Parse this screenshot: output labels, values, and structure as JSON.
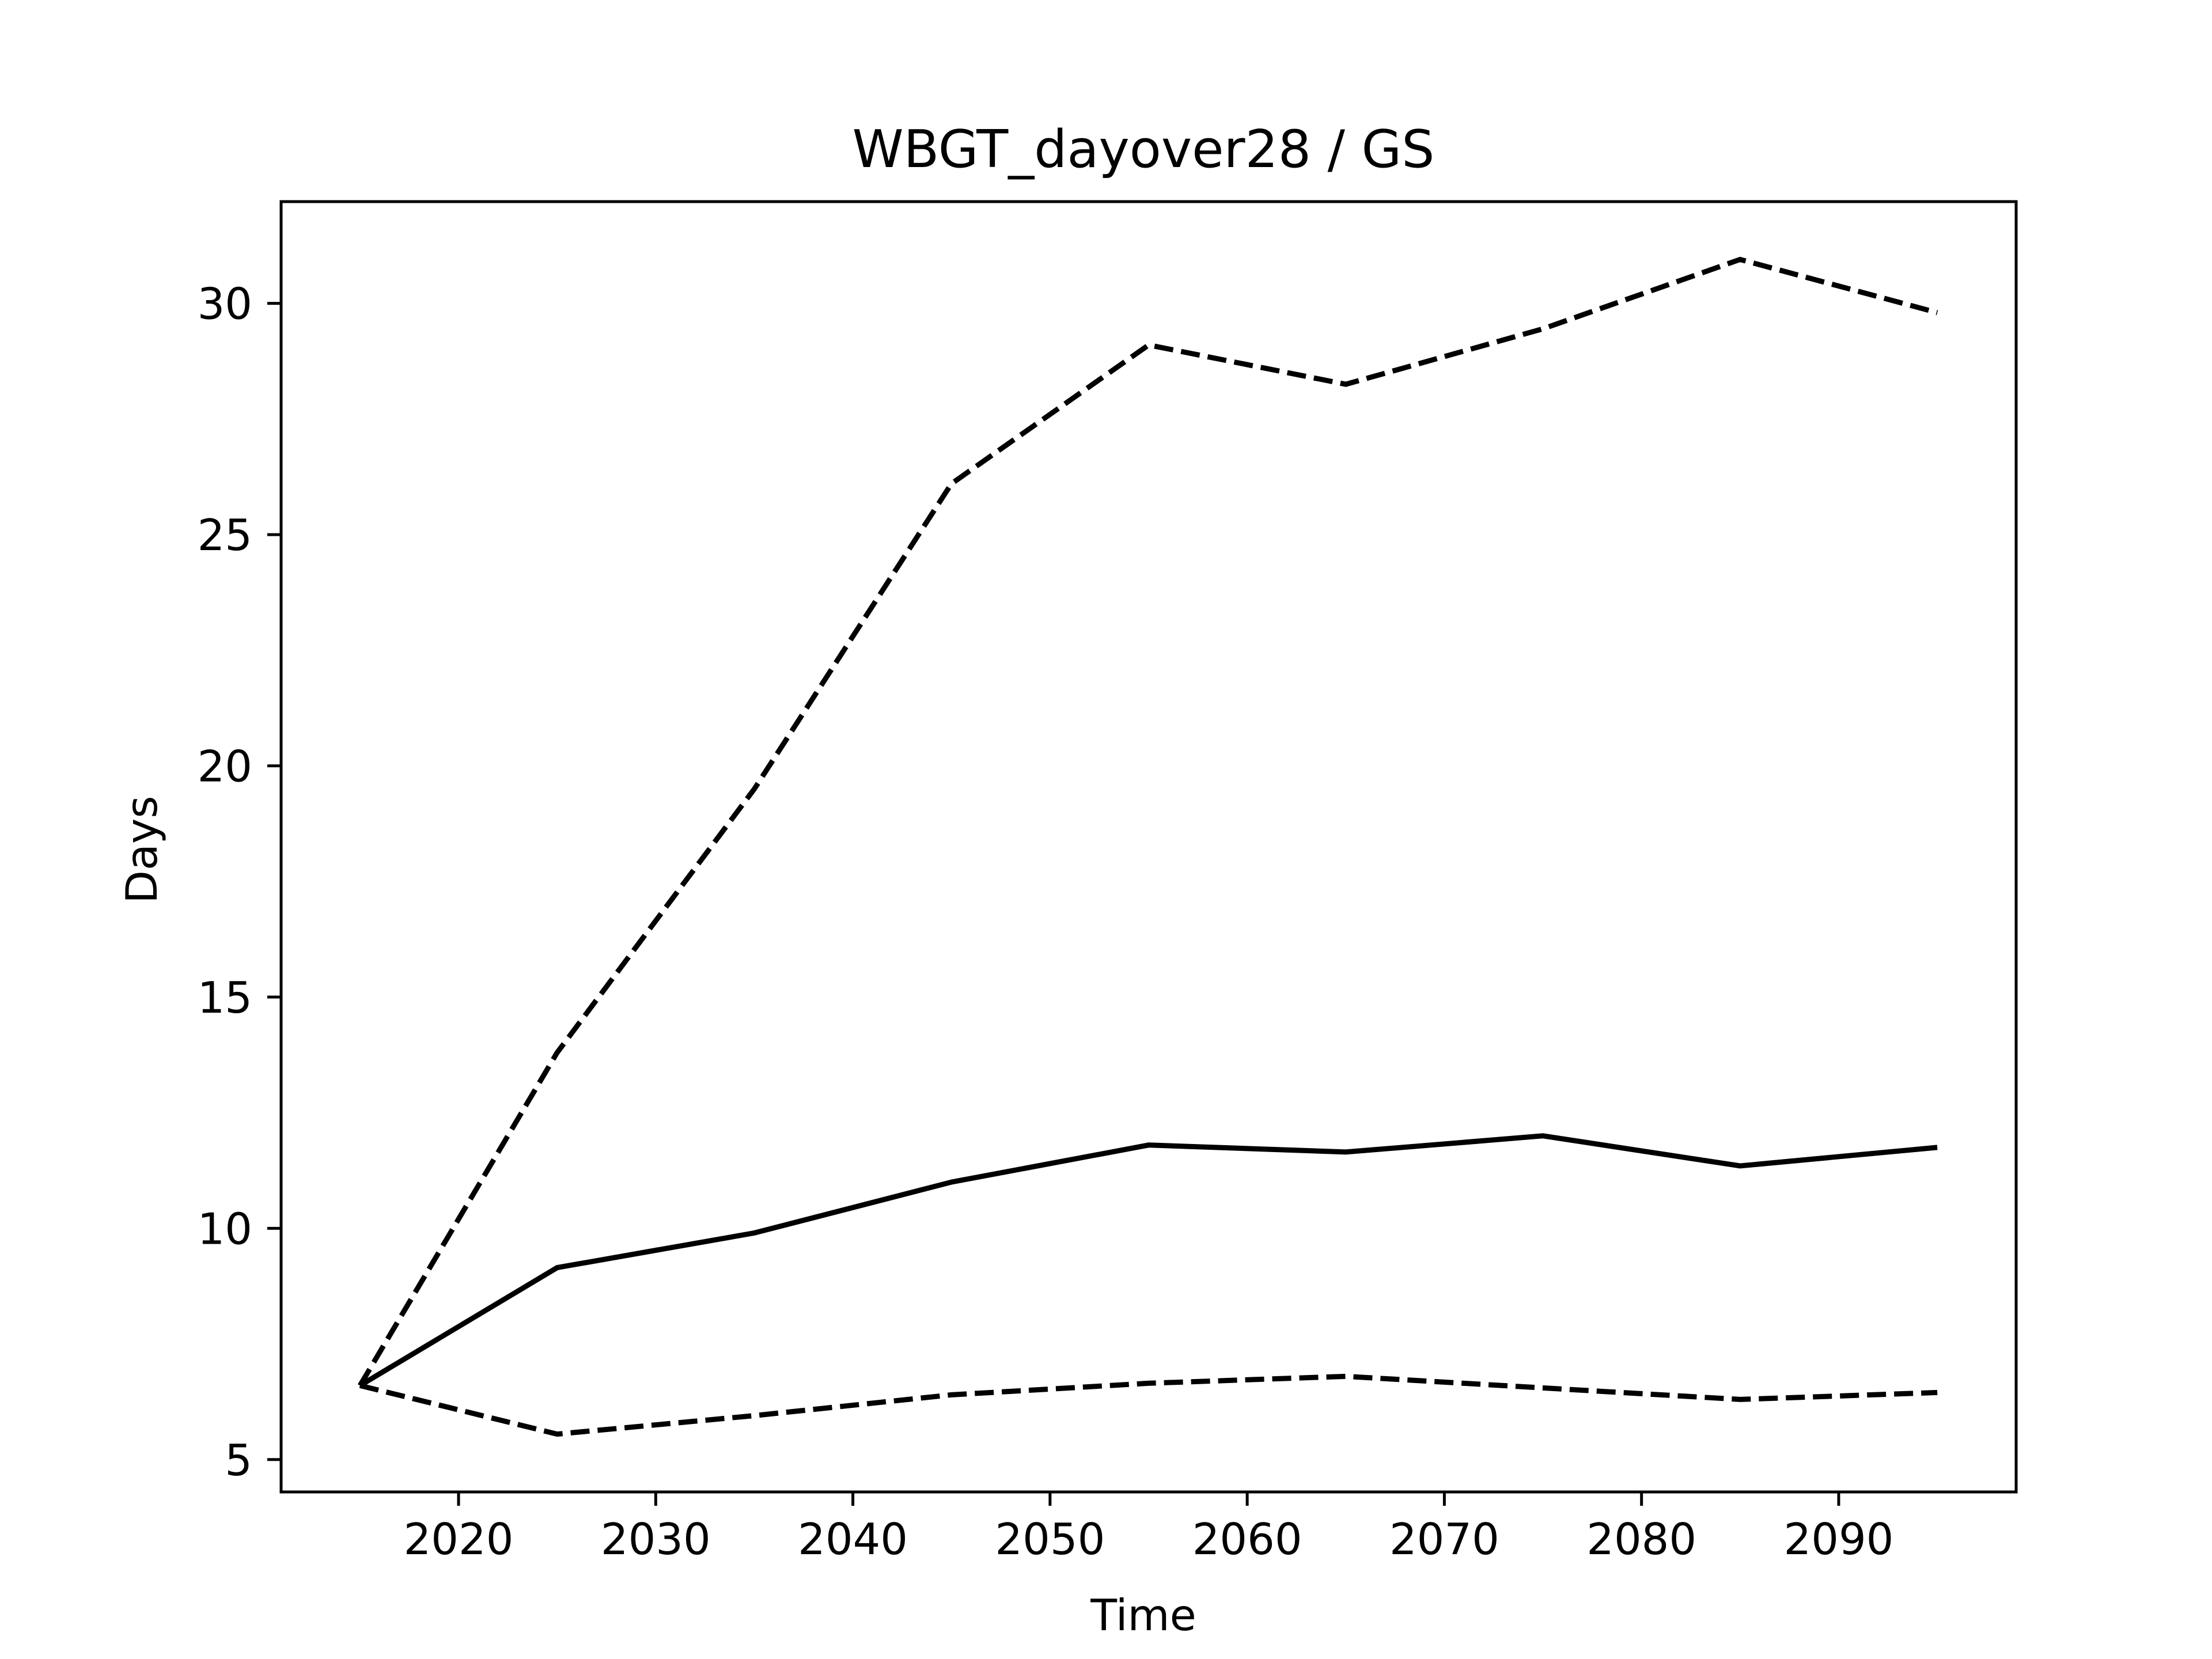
{
  "chart_data": {
    "type": "line",
    "title": "WBGT_dayover28 / GS",
    "xlabel": "Time",
    "ylabel": "Days",
    "xlim": [
      2011,
      2099
    ],
    "ylim": [
      4.3,
      32.2
    ],
    "xticks": [
      2020,
      2030,
      2040,
      2050,
      2060,
      2070,
      2080,
      2090
    ],
    "yticks": [
      5,
      10,
      15,
      20,
      25,
      30
    ],
    "grid": false,
    "legend": "none",
    "x": [
      2015,
      2025,
      2035,
      2045,
      2055,
      2065,
      2075,
      2085,
      2095
    ],
    "series": [
      {
        "style": "solid",
        "color": "#000000",
        "values": [
          6.6,
          9.15,
          9.9,
          11.0,
          11.8,
          11.65,
          12.0,
          11.35,
          11.75
        ]
      },
      {
        "style": "dashed",
        "color": "#000000",
        "values": [
          6.6,
          13.8,
          19.5,
          26.1,
          29.1,
          28.25,
          29.45,
          30.95,
          29.8
        ]
      },
      {
        "style": "dashed",
        "color": "#000000",
        "values": [
          6.6,
          5.55,
          5.95,
          6.4,
          6.65,
          6.8,
          6.55,
          6.3,
          6.45
        ]
      }
    ]
  }
}
